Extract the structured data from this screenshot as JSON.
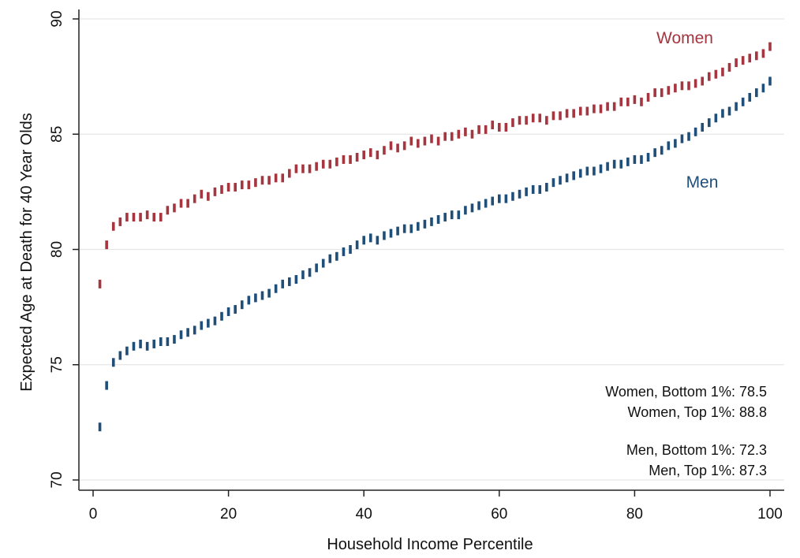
{
  "chart_data": {
    "type": "scatter",
    "xlabel": "Household Income Percentile",
    "ylabel": "Expected Age at Death for 40 Year Olds",
    "xlim": [
      0,
      100
    ],
    "ylim": [
      70,
      90
    ],
    "x_ticks": [
      "0",
      "20",
      "40",
      "60",
      "80",
      "100"
    ],
    "y_ticks": [
      "70",
      "75",
      "80",
      "85",
      "90"
    ],
    "grid": "horizontal",
    "colors": {
      "women": "#a5353f",
      "men": "#1f4e79"
    },
    "series": [
      {
        "name": "Women",
        "color": "#a5353f",
        "x": [
          1,
          2,
          3,
          4,
          5,
          6,
          7,
          8,
          9,
          10,
          11,
          12,
          13,
          14,
          15,
          16,
          17,
          18,
          19,
          20,
          21,
          22,
          23,
          24,
          25,
          26,
          27,
          28,
          29,
          30,
          31,
          32,
          33,
          34,
          35,
          36,
          37,
          38,
          39,
          40,
          41,
          42,
          43,
          44,
          45,
          46,
          47,
          48,
          49,
          50,
          51,
          52,
          53,
          54,
          55,
          56,
          57,
          58,
          59,
          60,
          61,
          62,
          63,
          64,
          65,
          66,
          67,
          68,
          69,
          70,
          71,
          72,
          73,
          74,
          75,
          76,
          77,
          78,
          79,
          80,
          81,
          82,
          83,
          84,
          85,
          86,
          87,
          88,
          89,
          90,
          91,
          92,
          93,
          94,
          95,
          96,
          97,
          98,
          99,
          100
        ],
        "values": [
          78.5,
          80.2,
          81.0,
          81.2,
          81.4,
          81.4,
          81.4,
          81.5,
          81.4,
          81.4,
          81.7,
          81.8,
          82.0,
          82.0,
          82.2,
          82.4,
          82.3,
          82.5,
          82.6,
          82.7,
          82.7,
          82.8,
          82.8,
          82.9,
          83.0,
          83.0,
          83.1,
          83.1,
          83.3,
          83.5,
          83.5,
          83.5,
          83.6,
          83.7,
          83.7,
          83.8,
          83.9,
          83.9,
          84.0,
          84.1,
          84.2,
          84.1,
          84.3,
          84.5,
          84.4,
          84.5,
          84.7,
          84.6,
          84.7,
          84.8,
          84.7,
          84.9,
          84.9,
          85.0,
          85.1,
          85.0,
          85.2,
          85.2,
          85.4,
          85.3,
          85.3,
          85.5,
          85.6,
          85.6,
          85.7,
          85.7,
          85.6,
          85.8,
          85.8,
          85.9,
          85.9,
          86.0,
          86.0,
          86.1,
          86.1,
          86.2,
          86.2,
          86.4,
          86.4,
          86.5,
          86.4,
          86.6,
          86.8,
          86.8,
          86.9,
          87.0,
          87.1,
          87.1,
          87.2,
          87.3,
          87.5,
          87.6,
          87.7,
          87.9,
          88.1,
          88.2,
          88.3,
          88.4,
          88.5,
          88.8
        ]
      },
      {
        "name": "Men",
        "color": "#1f4e79",
        "x": [
          1,
          2,
          3,
          4,
          5,
          6,
          7,
          8,
          9,
          10,
          11,
          12,
          13,
          14,
          15,
          16,
          17,
          18,
          19,
          20,
          21,
          22,
          23,
          24,
          25,
          26,
          27,
          28,
          29,
          30,
          31,
          32,
          33,
          34,
          35,
          36,
          37,
          38,
          39,
          40,
          41,
          42,
          43,
          44,
          45,
          46,
          47,
          48,
          49,
          50,
          51,
          52,
          53,
          54,
          55,
          56,
          57,
          58,
          59,
          60,
          61,
          62,
          63,
          64,
          65,
          66,
          67,
          68,
          69,
          70,
          71,
          72,
          73,
          74,
          75,
          76,
          77,
          78,
          79,
          80,
          81,
          82,
          83,
          84,
          85,
          86,
          87,
          88,
          89,
          90,
          91,
          92,
          93,
          94,
          95,
          96,
          97,
          98,
          99,
          100
        ],
        "values": [
          72.3,
          74.1,
          75.1,
          75.4,
          75.6,
          75.8,
          75.9,
          75.8,
          75.9,
          76.0,
          76.0,
          76.1,
          76.3,
          76.4,
          76.5,
          76.7,
          76.8,
          76.9,
          77.1,
          77.3,
          77.4,
          77.6,
          77.8,
          77.9,
          78.0,
          78.1,
          78.3,
          78.5,
          78.6,
          78.7,
          78.9,
          79.0,
          79.2,
          79.4,
          79.6,
          79.7,
          79.9,
          80.0,
          80.2,
          80.4,
          80.5,
          80.4,
          80.6,
          80.7,
          80.8,
          80.9,
          80.9,
          81.0,
          81.1,
          81.2,
          81.3,
          81.4,
          81.5,
          81.5,
          81.7,
          81.8,
          81.9,
          82.0,
          82.1,
          82.2,
          82.2,
          82.3,
          82.4,
          82.5,
          82.6,
          82.6,
          82.7,
          82.9,
          83.0,
          83.1,
          83.2,
          83.3,
          83.4,
          83.4,
          83.5,
          83.6,
          83.7,
          83.7,
          83.8,
          83.9,
          83.9,
          84.0,
          84.2,
          84.3,
          84.5,
          84.6,
          84.8,
          84.9,
          85.1,
          85.3,
          85.5,
          85.7,
          85.9,
          86.0,
          86.2,
          86.4,
          86.6,
          86.8,
          87.0,
          87.3
        ]
      }
    ],
    "series_labels": {
      "women": "Women",
      "men": "Men"
    },
    "annotations": [
      "Women, Bottom 1%: 78.5",
      "Women, Top 1%: 88.8",
      "Men, Bottom 1%: 72.3",
      "Men, Top 1%: 87.3"
    ]
  }
}
